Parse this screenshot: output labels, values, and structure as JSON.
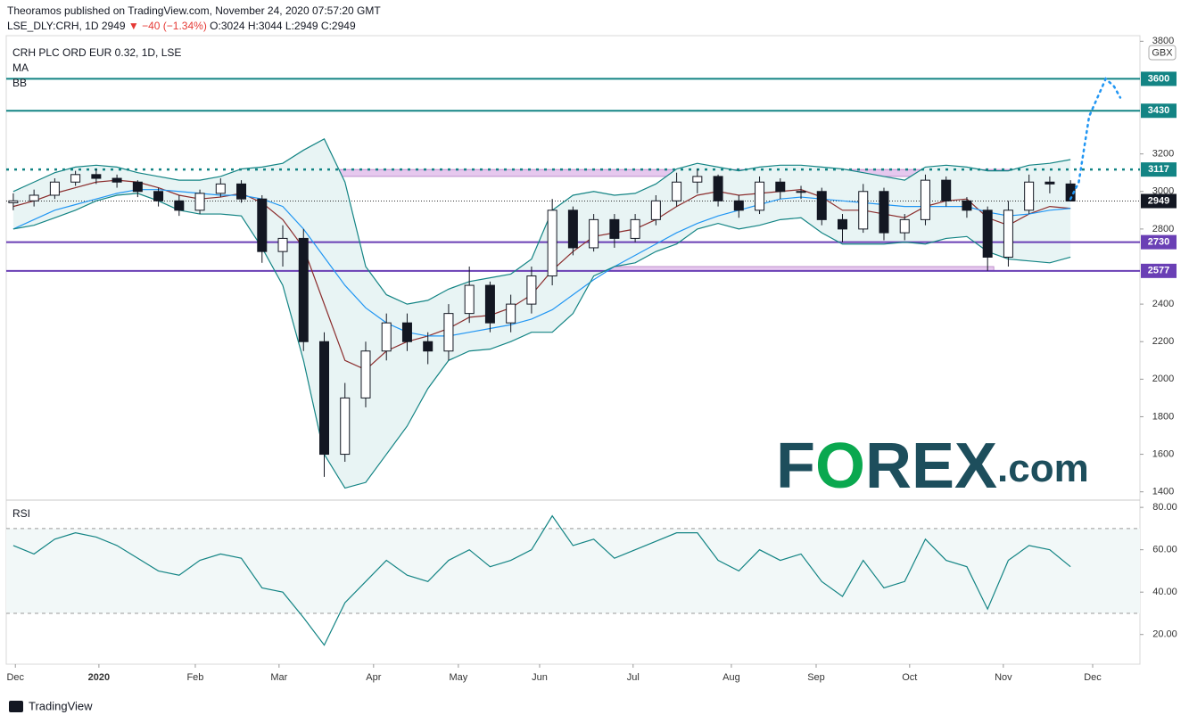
{
  "header": {
    "publisher": "Theoramos published on TradingView.com, November 24, 2020 07:57:20 GMT",
    "symbol": "LSE_DLY:CRH, 1D",
    "last": "2949",
    "change": "▼ −40 (−1.34%)",
    "ohlc": "O:3024 H:3044 L:2949 C:2949"
  },
  "footer": "TradingView",
  "watermark": [
    "F",
    "O",
    "REX",
    ".com"
  ],
  "chart_data": {
    "type": "candlestick",
    "title": "CRH PLC ORD EUR 0.32, 1D, LSE",
    "indicator_labels": [
      "MA",
      "BB"
    ],
    "currency": "GBX",
    "open": [
      2940,
      2950,
      2980,
      3050,
      3090,
      3070,
      3050,
      3000,
      2950,
      2900,
      2990,
      3040,
      2960,
      2680,
      2750,
      2200,
      1600,
      1900,
      2150,
      2300,
      2200,
      2150,
      2350,
      2500,
      2300,
      2400,
      2550,
      2900,
      2700,
      2850,
      2750,
      2850,
      2950,
      3050,
      3080,
      2950,
      2900,
      3050,
      3000,
      3000,
      2850,
      2800,
      3000,
      2780,
      2850,
      3060,
      2950,
      2900,
      2650,
      2900,
      3050,
      3040
    ],
    "high": [
      2990,
      3010,
      3070,
      3110,
      3120,
      3090,
      3060,
      3020,
      2980,
      3010,
      3070,
      3060,
      2980,
      2820,
      2800,
      2250,
      1980,
      2200,
      2350,
      2350,
      2250,
      2400,
      2600,
      2520,
      2450,
      2600,
      2960,
      2920,
      2880,
      2880,
      2880,
      2980,
      3100,
      3120,
      3090,
      2980,
      3080,
      3070,
      3030,
      3020,
      2880,
      3040,
      3020,
      2880,
      3090,
      3080,
      2970,
      2920,
      2950,
      3090,
      3080,
      3060
    ],
    "low": [
      2900,
      2920,
      2960,
      3030,
      3040,
      3020,
      2970,
      2920,
      2870,
      2880,
      2970,
      2940,
      2620,
      2600,
      2150,
      1480,
      1560,
      1850,
      2100,
      2150,
      2080,
      2100,
      2300,
      2250,
      2250,
      2350,
      2500,
      2660,
      2680,
      2700,
      2730,
      2820,
      2920,
      2990,
      2920,
      2860,
      2880,
      2960,
      2960,
      2820,
      2730,
      2780,
      2740,
      2740,
      2820,
      2920,
      2860,
      2577,
      2600,
      2880,
      2990,
      2949
    ],
    "close": [
      2950,
      2980,
      3050,
      3090,
      3070,
      3050,
      3000,
      2950,
      2900,
      2990,
      3040,
      2960,
      2680,
      2750,
      2200,
      1600,
      1900,
      2150,
      2300,
      2200,
      2150,
      2350,
      2500,
      2300,
      2400,
      2550,
      2900,
      2700,
      2850,
      2750,
      2850,
      2950,
      3050,
      3080,
      2950,
      2900,
      3050,
      3000,
      3000,
      2850,
      2800,
      3000,
      2780,
      2850,
      3060,
      2950,
      2900,
      2650,
      2900,
      3050,
      3040,
      2949
    ],
    "overlays": [
      {
        "color": "#8b2d2d",
        "values": [
          2920,
          2950,
          2990,
          3020,
          3050,
          3060,
          3050,
          3020,
          2980,
          2960,
          2970,
          2990,
          2940,
          2850,
          2700,
          2400,
          2100,
          2050,
          2150,
          2200,
          2230,
          2270,
          2330,
          2340,
          2380,
          2450,
          2580,
          2680,
          2760,
          2780,
          2800,
          2850,
          2920,
          2980,
          3000,
          2980,
          2990,
          3000,
          3010,
          2970,
          2900,
          2900,
          2880,
          2860,
          2920,
          2950,
          2960,
          2860,
          2820,
          2880,
          2920,
          2910
        ]
      },
      {
        "color": "#2196f3",
        "values": [
          2800,
          2850,
          2900,
          2930,
          2960,
          2990,
          3010,
          3010,
          3000,
          2990,
          2980,
          2980,
          2960,
          2920,
          2800,
          2650,
          2500,
          2380,
          2300,
          2250,
          2230,
          2230,
          2250,
          2270,
          2290,
          2320,
          2370,
          2450,
          2530,
          2600,
          2660,
          2720,
          2780,
          2830,
          2870,
          2900,
          2930,
          2960,
          2970,
          2960,
          2950,
          2940,
          2930,
          2920,
          2920,
          2920,
          2920,
          2890,
          2870,
          2880,
          2900,
          2910
        ]
      },
      {
        "color": "#138484",
        "values": [
          3000,
          3050,
          3100,
          3130,
          3140,
          3130,
          3100,
          3080,
          3060,
          3060,
          3080,
          3120,
          3130,
          3150,
          3220,
          3280,
          3050,
          2600,
          2450,
          2400,
          2420,
          2480,
          2520,
          2540,
          2560,
          2640,
          2900,
          2980,
          3000,
          2980,
          2990,
          3040,
          3120,
          3150,
          3130,
          3110,
          3130,
          3140,
          3140,
          3130,
          3120,
          3100,
          3080,
          3060,
          3130,
          3140,
          3130,
          3110,
          3110,
          3140,
          3150,
          3170
        ]
      },
      {
        "color": "#138484",
        "values": [
          2800,
          2820,
          2860,
          2900,
          2950,
          2980,
          2990,
          2950,
          2900,
          2880,
          2880,
          2870,
          2700,
          2500,
          2100,
          1600,
          1420,
          1450,
          1600,
          1750,
          1950,
          2100,
          2150,
          2160,
          2200,
          2250,
          2250,
          2350,
          2550,
          2600,
          2620,
          2680,
          2720,
          2800,
          2830,
          2800,
          2820,
          2850,
          2860,
          2780,
          2720,
          2720,
          2720,
          2730,
          2720,
          2750,
          2760,
          2680,
          2640,
          2630,
          2620,
          2650
        ]
      }
    ],
    "band_fill": "#e8f4f4",
    "levels": [
      {
        "value": 3600,
        "color": "#138484",
        "dotted": false
      },
      {
        "value": 3430,
        "color": "#138484",
        "dotted": false
      },
      {
        "value": 3117,
        "color": "#138484",
        "dotted": true
      },
      {
        "value": 2730,
        "color": "#6a3fb5",
        "dotted": false
      },
      {
        "value": 2577,
        "color": "#6a3fb5",
        "dotted": false
      }
    ],
    "last_price": 2949,
    "zones": [
      {
        "x": [
          11.83,
          50.9
        ],
        "y": [
          3080,
          3117
        ],
        "color": "#e6c8ee"
      },
      {
        "x": [
          27.3,
          47.3
        ],
        "y": [
          2577,
          2600
        ],
        "color": "#e6c8ee"
      }
    ],
    "projection": {
      "color": "#2196f3",
      "x": [
        51.0,
        51.4,
        51.9,
        52.7,
        53.1,
        53.4
      ],
      "y": [
        2960,
        3050,
        3400,
        3600,
        3560,
        3500
      ]
    },
    "xlim": [
      -0.34,
      54.35
    ],
    "xticks": [
      {
        "value": 0.1,
        "label": "Dec"
      },
      {
        "value": 4.13,
        "label": "2020"
      },
      {
        "value": 8.78,
        "label": "Feb"
      },
      {
        "value": 12.82,
        "label": "Mar"
      },
      {
        "value": 17.38,
        "label": "Apr"
      },
      {
        "value": 21.47,
        "label": "May"
      },
      {
        "value": 25.39,
        "label": "Jun"
      },
      {
        "value": 29.9,
        "label": "Jul"
      },
      {
        "value": 34.64,
        "label": "Aug"
      },
      {
        "value": 38.73,
        "label": "Sep"
      },
      {
        "value": 43.24,
        "label": "Oct"
      },
      {
        "value": 47.76,
        "label": "Nov"
      },
      {
        "value": 52.07,
        "label": "Dec"
      }
    ],
    "ylim": [
      1370,
      3830
    ],
    "yticks": [
      1400,
      1600,
      1800,
      2000,
      2200,
      2400,
      2800,
      3000,
      3200,
      3800
    ],
    "rsi": {
      "title": "RSI",
      "color": "#138484",
      "ylim": [
        6,
        83
      ],
      "bands": [
        30,
        70
      ],
      "yticks": [
        {
          "value": 20,
          "label": "20.00"
        },
        {
          "value": 40,
          "label": "40.00"
        },
        {
          "value": 60,
          "label": "60.00"
        },
        {
          "value": 80,
          "label": "80.00"
        }
      ],
      "values": [
        62,
        58,
        65,
        68,
        66,
        62,
        56,
        50,
        48,
        55,
        58,
        56,
        42,
        40,
        28,
        15,
        35,
        45,
        55,
        48,
        45,
        55,
        60,
        52,
        55,
        60,
        76,
        62,
        65,
        56,
        60,
        64,
        68,
        68,
        55,
        50,
        60,
        55,
        58,
        45,
        38,
        55,
        42,
        45,
        65,
        55,
        52,
        32,
        55,
        62,
        60,
        52
      ]
    }
  }
}
